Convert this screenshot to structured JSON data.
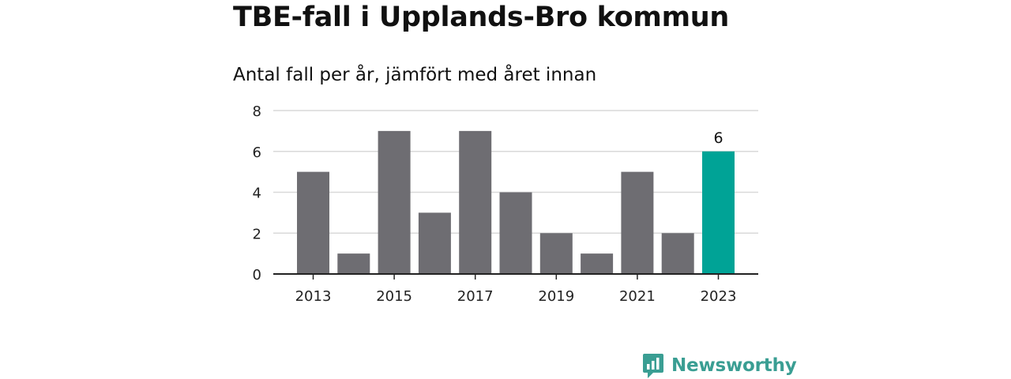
{
  "header": {
    "title": "TBE-fall i Upplands-Bro kommun",
    "subtitle": "Antal fall per år, jämfört med året innan"
  },
  "brand": {
    "name": "Newsworthy",
    "logo_icon": "bar-chart-chat-bubble-icon"
  },
  "colors": {
    "bar": "#6e6d72",
    "highlight": "#00a396",
    "grid": "#d9d9d9",
    "axis": "#222222",
    "text": "#222222"
  },
  "chart_data": {
    "type": "bar",
    "title": "TBE-fall i Upplands-Bro kommun",
    "subtitle": "Antal fall per år, jämfört med året innan",
    "xlabel": "",
    "ylabel": "",
    "categories": [
      "2013",
      "2014",
      "2015",
      "2016",
      "2017",
      "2018",
      "2019",
      "2020",
      "2021",
      "2022",
      "2023"
    ],
    "values": [
      5,
      1,
      7,
      3,
      7,
      4,
      2,
      1,
      5,
      2,
      6
    ],
    "x_tick_labels": [
      "2013",
      "2015",
      "2017",
      "2019",
      "2021",
      "2023"
    ],
    "y_ticks": [
      0,
      2,
      4,
      6,
      8
    ],
    "ylim": [
      0,
      8
    ],
    "grid": true,
    "highlight_category": "2023",
    "data_labels": [
      {
        "category": "2023",
        "text": "6"
      }
    ]
  }
}
